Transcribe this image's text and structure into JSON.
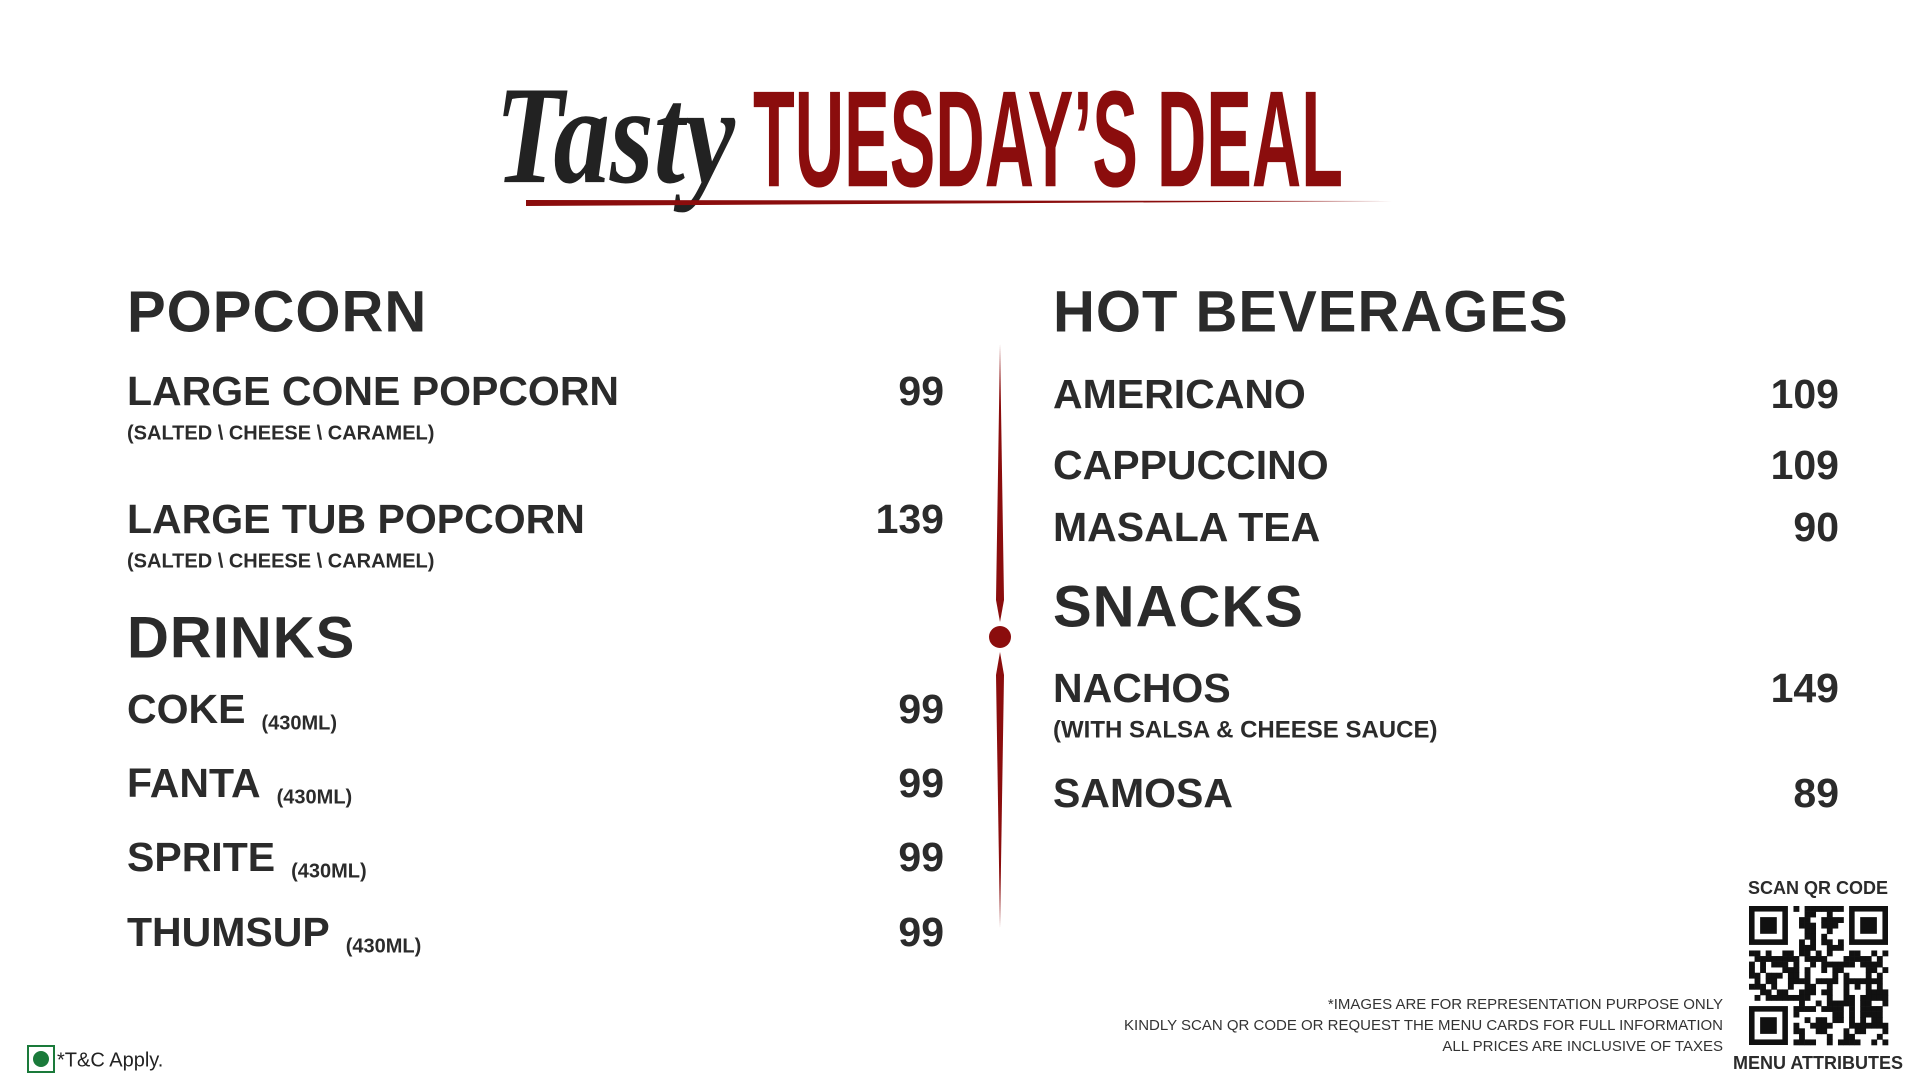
{
  "header": {
    "script_title": "Tasty",
    "title": "TUESDAY’S DEAL"
  },
  "sections": [
    {
      "title": "POPCORN",
      "items": [
        {
          "name": "LARGE CONE POPCORN",
          "note": "(SALTED \\ CHEESE \\ CARAMEL)",
          "price": 99
        },
        {
          "name": "LARGE TUB POPCORN",
          "note": "(SALTED \\ CHEESE \\ CARAMEL)",
          "price": 139
        }
      ]
    },
    {
      "title": "DRINKS",
      "items": [
        {
          "name": "COKE",
          "note": "(430ML)",
          "price": 99
        },
        {
          "name": "FANTA",
          "note": "(430ML)",
          "price": 99
        },
        {
          "name": "SPRITE",
          "note": "(430ML)",
          "price": 99
        },
        {
          "name": "THUMSUP",
          "note": "(430ML)",
          "price": 99
        }
      ]
    },
    {
      "title": "HOT BEVERAGES",
      "items": [
        {
          "name": "AMERICANO",
          "price": 109
        },
        {
          "name": "CAPPUCCINO",
          "price": 109
        },
        {
          "name": "MASALA TEA",
          "price": 90
        }
      ]
    },
    {
      "title": "SNACKS",
      "items": [
        {
          "name": "NACHOS",
          "note": "(WITH SALSA & CHEESE SAUCE)",
          "price": 149
        },
        {
          "name": "SAMOSA",
          "price": 89
        }
      ]
    }
  ],
  "footer": {
    "notes": [
      "*IMAGES ARE FOR REPRESENTATION PURPOSE ONLY",
      "KINDLY SCAN QR CODE OR REQUEST THE MENU CARDS FOR FULL INFORMATION",
      "ALL PRICES ARE INCLUSIVE OF TAXES"
    ],
    "qr_top": "SCAN QR CODE",
    "qr_bottom": "MENU ATTRIBUTES",
    "terms": "*T&C Apply."
  }
}
